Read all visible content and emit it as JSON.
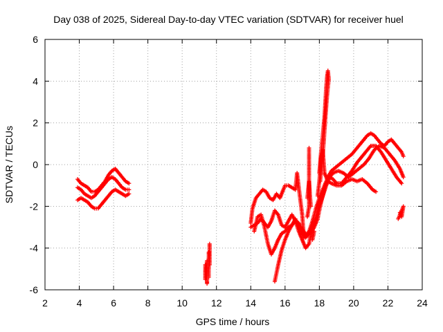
{
  "chart_data": {
    "type": "scatter",
    "title": "Day 038 of 2025, Sidereal Day-to-day VTEC variation (SDTVAR) for receiver huel",
    "xlabel": "GPS time / hours",
    "ylabel": "SDTVAR / TECUs",
    "xlim": [
      2,
      24
    ],
    "ylim": [
      -6,
      6
    ],
    "x_ticks": [
      2,
      4,
      6,
      8,
      10,
      12,
      14,
      16,
      18,
      20,
      22,
      24
    ],
    "y_ticks": [
      -6,
      -4,
      -2,
      0,
      2,
      4,
      6
    ],
    "x_tick_labels": [
      "2",
      "4",
      "6",
      "8",
      "10",
      "12",
      "14",
      "16",
      "18",
      "20",
      "22",
      "24"
    ],
    "y_tick_labels": [
      "-6",
      "-4",
      "-2",
      "0",
      "2",
      "4",
      "6"
    ],
    "grid": true,
    "marker": "+",
    "color": "#ff0000",
    "series": [
      {
        "points": [
          [
            3.9,
            -0.7
          ],
          [
            4.1,
            -0.9
          ],
          [
            4.3,
            -1.0
          ],
          [
            4.5,
            -1.1
          ],
          [
            4.7,
            -1.3
          ],
          [
            4.9,
            -1.3
          ],
          [
            5.1,
            -1.2
          ],
          [
            5.3,
            -1.0
          ],
          [
            5.5,
            -0.8
          ],
          [
            5.7,
            -0.5
          ],
          [
            5.9,
            -0.3
          ],
          [
            6.1,
            -0.2
          ],
          [
            6.3,
            -0.4
          ],
          [
            6.5,
            -0.6
          ],
          [
            6.7,
            -0.8
          ],
          [
            6.9,
            -0.9
          ],
          [
            3.9,
            -1.1
          ],
          [
            4.1,
            -1.2
          ],
          [
            4.3,
            -1.4
          ],
          [
            4.5,
            -1.5
          ],
          [
            4.7,
            -1.6
          ],
          [
            4.9,
            -1.5
          ],
          [
            5.1,
            -1.3
          ],
          [
            5.3,
            -1.1
          ],
          [
            5.5,
            -0.9
          ],
          [
            5.7,
            -0.7
          ],
          [
            5.9,
            -0.6
          ],
          [
            6.1,
            -0.7
          ],
          [
            6.3,
            -0.9
          ],
          [
            6.5,
            -1.1
          ],
          [
            6.7,
            -1.2
          ],
          [
            6.9,
            -1.2
          ],
          [
            3.9,
            -1.7
          ],
          [
            4.1,
            -1.6
          ],
          [
            4.3,
            -1.7
          ],
          [
            4.5,
            -1.8
          ],
          [
            4.7,
            -2.0
          ],
          [
            4.9,
            -2.1
          ],
          [
            5.1,
            -2.1
          ],
          [
            5.3,
            -1.9
          ],
          [
            5.5,
            -1.7
          ],
          [
            5.7,
            -1.5
          ],
          [
            5.9,
            -1.3
          ],
          [
            6.1,
            -1.2
          ],
          [
            6.3,
            -1.3
          ],
          [
            6.5,
            -1.4
          ],
          [
            6.7,
            -1.5
          ],
          [
            6.9,
            -1.4
          ]
        ]
      },
      {
        "points": [
          [
            11.35,
            -4.8
          ],
          [
            11.35,
            -5.0
          ],
          [
            11.35,
            -5.3
          ],
          [
            11.35,
            -5.5
          ],
          [
            11.45,
            -4.6
          ],
          [
            11.45,
            -5.2
          ],
          [
            11.45,
            -5.6
          ],
          [
            11.45,
            -5.7
          ],
          [
            11.55,
            -4.2
          ],
          [
            11.55,
            -4.6
          ],
          [
            11.55,
            -5.0
          ],
          [
            11.55,
            -5.4
          ],
          [
            11.6,
            -3.8
          ],
          [
            11.6,
            -4.1
          ],
          [
            11.6,
            -4.8
          ]
        ]
      },
      {
        "points": [
          [
            14.0,
            -2.8
          ],
          [
            14.1,
            -2.1
          ],
          [
            14.3,
            -1.6
          ],
          [
            14.5,
            -1.4
          ],
          [
            14.7,
            -1.2
          ],
          [
            14.9,
            -1.3
          ],
          [
            15.1,
            -1.6
          ],
          [
            15.3,
            -1.7
          ],
          [
            15.5,
            -1.4
          ],
          [
            15.7,
            -1.6
          ],
          [
            15.9,
            -1.2
          ],
          [
            16.0,
            -1.0
          ],
          [
            16.2,
            -1.0
          ],
          [
            16.4,
            -1.1
          ],
          [
            16.6,
            -1.2
          ],
          [
            16.7,
            -0.4
          ],
          [
            16.8,
            -1.1
          ],
          [
            17.0,
            -2.4
          ],
          [
            17.1,
            -3.5
          ],
          [
            17.2,
            -3.3
          ],
          [
            17.3,
            -1.6
          ],
          [
            17.4,
            -0.8
          ],
          [
            17.5,
            -2.0
          ],
          [
            17.6,
            -3.6
          ],
          [
            17.7,
            -3.2
          ],
          [
            17.9,
            -1.5
          ],
          [
            18.0,
            -0.8
          ],
          [
            18.1,
            0.3
          ],
          [
            18.2,
            0.7
          ],
          [
            18.3,
            -0.4
          ],
          [
            18.5,
            -0.8
          ],
          [
            18.7,
            -0.9
          ],
          [
            19.0,
            -1.0
          ],
          [
            19.3,
            -1.0
          ],
          [
            19.6,
            -0.8
          ],
          [
            19.9,
            -0.7
          ],
          [
            20.2,
            -0.8
          ],
          [
            20.5,
            -0.7
          ],
          [
            20.8,
            -0.9
          ],
          [
            21.1,
            -1.2
          ],
          [
            21.3,
            -1.3
          ],
          [
            14.0,
            -3.0
          ],
          [
            14.2,
            -2.9
          ],
          [
            14.4,
            -2.8
          ],
          [
            14.6,
            -2.6
          ],
          [
            14.8,
            -2.8
          ],
          [
            15.0,
            -3.0
          ],
          [
            15.2,
            -2.7
          ],
          [
            15.4,
            -2.2
          ],
          [
            15.6,
            -2.4
          ],
          [
            15.8,
            -2.9
          ],
          [
            16.0,
            -3.0
          ],
          [
            16.2,
            -2.7
          ],
          [
            16.4,
            -2.4
          ],
          [
            16.6,
            -2.7
          ],
          [
            16.8,
            -3.2
          ],
          [
            17.0,
            -3.6
          ],
          [
            17.2,
            -4.0
          ],
          [
            17.4,
            -3.8
          ],
          [
            17.5,
            -3.3
          ],
          [
            17.7,
            -3.0
          ],
          [
            17.9,
            -2.6
          ],
          [
            18.1,
            -1.8
          ],
          [
            18.3,
            -1.2
          ],
          [
            18.5,
            -0.6
          ],
          [
            18.7,
            -0.3
          ],
          [
            19.0,
            -0.1
          ],
          [
            19.3,
            0.1
          ],
          [
            19.6,
            0.3
          ],
          [
            19.9,
            0.5
          ],
          [
            20.2,
            0.8
          ],
          [
            20.5,
            1.1
          ],
          [
            20.8,
            1.4
          ],
          [
            21.0,
            1.5
          ],
          [
            21.2,
            1.4
          ],
          [
            21.4,
            1.2
          ],
          [
            21.6,
            1.0
          ],
          [
            21.8,
            0.9
          ],
          [
            22.0,
            1.1
          ],
          [
            22.2,
            1.2
          ],
          [
            22.4,
            1.0
          ],
          [
            22.6,
            0.8
          ],
          [
            22.8,
            0.6
          ],
          [
            22.9,
            0.4
          ],
          [
            14.2,
            -3.2
          ],
          [
            14.4,
            -2.5
          ],
          [
            14.6,
            -2.4
          ],
          [
            14.8,
            -3.0
          ],
          [
            15.0,
            -3.8
          ],
          [
            15.2,
            -4.3
          ],
          [
            15.4,
            -4.0
          ],
          [
            15.6,
            -3.6
          ],
          [
            15.8,
            -3.3
          ],
          [
            16.0,
            -3.2
          ],
          [
            16.2,
            -3.0
          ],
          [
            16.4,
            -2.9
          ],
          [
            16.6,
            -2.6
          ],
          [
            16.8,
            -3.0
          ],
          [
            17.0,
            -3.3
          ],
          [
            17.2,
            -3.5
          ],
          [
            17.4,
            -3.3
          ],
          [
            17.6,
            -3.0
          ],
          [
            17.8,
            -2.5
          ],
          [
            18.0,
            -2.0
          ],
          [
            18.2,
            -1.5
          ],
          [
            18.4,
            -1.0
          ],
          [
            18.6,
            -0.6
          ],
          [
            18.8,
            -0.4
          ],
          [
            19.1,
            -0.3
          ],
          [
            19.4,
            -0.4
          ],
          [
            19.7,
            -0.6
          ],
          [
            20.0,
            -0.4
          ],
          [
            20.3,
            -0.2
          ],
          [
            20.6,
            0.0
          ],
          [
            20.9,
            0.3
          ],
          [
            21.2,
            0.7
          ],
          [
            21.5,
            0.9
          ],
          [
            21.8,
            0.8
          ],
          [
            22.1,
            0.5
          ],
          [
            22.4,
            0.2
          ],
          [
            22.7,
            -0.2
          ],
          [
            22.9,
            -0.6
          ],
          [
            15.4,
            -5.6
          ],
          [
            15.6,
            -4.8
          ],
          [
            15.8,
            -4.1
          ],
          [
            16.0,
            -3.6
          ],
          [
            16.2,
            -3.2
          ],
          [
            16.4,
            -2.9
          ],
          [
            16.6,
            -2.7
          ],
          [
            16.8,
            -2.8
          ],
          [
            17.0,
            -3.1
          ],
          [
            17.2,
            -3.4
          ],
          [
            17.4,
            -3.2
          ],
          [
            17.6,
            -2.7
          ],
          [
            17.8,
            -2.1
          ],
          [
            18.0,
            -1.6
          ],
          [
            18.2,
            -1.2
          ],
          [
            18.4,
            -0.8
          ],
          [
            18.6,
            -0.6
          ],
          [
            18.8,
            -0.7
          ],
          [
            19.0,
            -0.9
          ],
          [
            19.3,
            -0.9
          ],
          [
            19.6,
            -0.6
          ],
          [
            19.9,
            -0.3
          ],
          [
            20.2,
            0.1
          ],
          [
            20.5,
            0.4
          ],
          [
            20.8,
            0.7
          ],
          [
            21.0,
            0.9
          ],
          [
            21.3,
            0.9
          ],
          [
            21.6,
            0.6
          ],
          [
            21.9,
            0.2
          ],
          [
            22.2,
            -0.2
          ],
          [
            22.5,
            -0.6
          ],
          [
            22.8,
            -0.9
          ],
          [
            17.4,
            0.8
          ],
          [
            17.4,
            0.2
          ],
          [
            17.4,
            -0.5
          ],
          [
            17.4,
            -1.3
          ],
          [
            17.4,
            -2.0
          ],
          [
            17.3,
            -2.5
          ],
          [
            18.0,
            -0.4
          ],
          [
            18.1,
            0.6
          ],
          [
            18.2,
            1.4
          ],
          [
            18.3,
            2.3
          ],
          [
            18.35,
            3.0
          ],
          [
            18.4,
            3.7
          ],
          [
            18.45,
            4.2
          ],
          [
            18.5,
            4.5
          ],
          [
            18.55,
            4.1
          ],
          [
            18.45,
            3.3
          ],
          [
            18.35,
            2.2
          ],
          [
            18.25,
            1.0
          ],
          [
            18.15,
            0.0
          ],
          [
            18.05,
            -0.8
          ],
          [
            22.6,
            -2.6
          ],
          [
            22.7,
            -2.4
          ],
          [
            22.8,
            -2.2
          ],
          [
            22.9,
            -2.0
          ],
          [
            22.8,
            -2.5
          ],
          [
            22.7,
            -2.3
          ]
        ]
      }
    ]
  }
}
